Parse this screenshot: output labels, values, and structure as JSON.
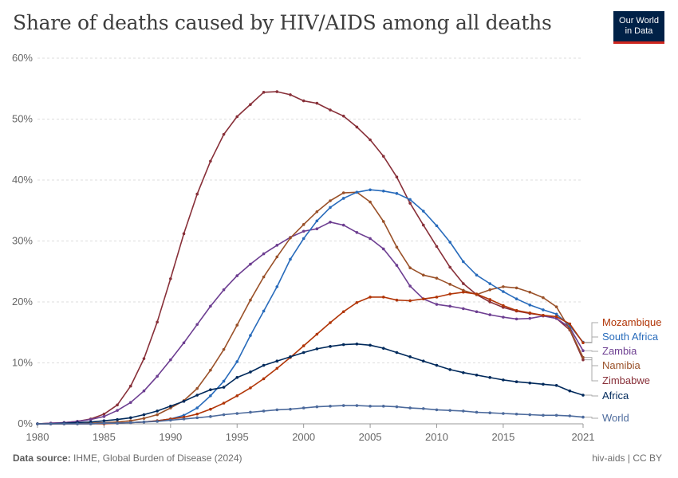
{
  "header": {
    "title": "Share of deaths caused by HIV/AIDS among all deaths",
    "logo_line1": "Our World",
    "logo_line2": "in Data"
  },
  "footer": {
    "source_label": "Data source:",
    "source_text": "IHME, Global Burden of Disease (2024)",
    "slug": "hiv-aids | CC BY"
  },
  "chart_data": {
    "type": "line",
    "title": "Share of deaths caused by HIV/AIDS among all deaths",
    "ylim": [
      0,
      60
    ],
    "y_ticks": [
      "0%",
      "10%",
      "20%",
      "30%",
      "40%",
      "50%",
      "60%"
    ],
    "x_ticks": [
      "1980",
      "1985",
      "1990",
      "1995",
      "2000",
      "2005",
      "2010",
      "2015",
      "2021"
    ],
    "grid": true,
    "legend": "right (labels at line ends)",
    "x": [
      1980,
      1981,
      1982,
      1983,
      1984,
      1985,
      1986,
      1987,
      1988,
      1989,
      1990,
      1991,
      1992,
      1993,
      1994,
      1995,
      1996,
      1997,
      1998,
      1999,
      2000,
      2001,
      2002,
      2003,
      2004,
      2005,
      2006,
      2007,
      2008,
      2009,
      2010,
      2011,
      2012,
      2013,
      2014,
      2015,
      2016,
      2017,
      2018,
      2019,
      2020,
      2021
    ],
    "series": [
      {
        "name": "Zimbabwe",
        "color": "#883039",
        "values": [
          0.0,
          0.1,
          0.2,
          0.4,
          0.8,
          1.6,
          3.1,
          6.2,
          10.7,
          16.7,
          23.8,
          31.2,
          37.7,
          43.1,
          47.5,
          50.4,
          52.4,
          54.4,
          54.5,
          54.0,
          53.0,
          52.6,
          51.5,
          50.5,
          48.7,
          46.6,
          43.9,
          40.5,
          36.2,
          32.6,
          29.1,
          25.7,
          23.0,
          21.2,
          20.0,
          19.1,
          18.5,
          18.1,
          17.8,
          17.3,
          15.4,
          10.5
        ]
      },
      {
        "name": "Zambia",
        "color": "#6d3e91",
        "values": [
          0.0,
          0.1,
          0.2,
          0.4,
          0.7,
          1.2,
          2.2,
          3.5,
          5.4,
          7.8,
          10.5,
          13.3,
          16.3,
          19.3,
          22.0,
          24.3,
          26.2,
          27.9,
          29.3,
          30.6,
          31.6,
          32.0,
          33.1,
          32.6,
          31.4,
          30.4,
          28.7,
          26.0,
          22.6,
          20.5,
          19.6,
          19.3,
          18.9,
          18.4,
          17.9,
          17.5,
          17.2,
          17.3,
          17.7,
          17.3,
          15.8,
          12.0
        ]
      },
      {
        "name": "Namibia",
        "color": "#9a5129",
        "values": [
          0.0,
          0.0,
          0.0,
          0.0,
          0.1,
          0.2,
          0.3,
          0.5,
          0.9,
          1.5,
          2.6,
          3.8,
          5.8,
          8.8,
          12.2,
          16.2,
          20.3,
          24.1,
          27.4,
          30.5,
          32.7,
          34.8,
          36.6,
          37.9,
          38.0,
          36.4,
          33.2,
          29.0,
          25.6,
          24.4,
          23.9,
          22.9,
          21.9,
          21.2,
          22.0,
          22.5,
          22.3,
          21.6,
          20.7,
          19.2,
          15.5,
          10.9
        ]
      },
      {
        "name": "South Africa",
        "color": "#286bbb",
        "values": [
          0.0,
          0.0,
          0.0,
          0.0,
          0.0,
          0.1,
          0.1,
          0.2,
          0.3,
          0.5,
          0.8,
          1.4,
          2.6,
          4.6,
          7.0,
          10.2,
          14.5,
          18.5,
          22.5,
          27.0,
          30.4,
          33.3,
          35.5,
          37.0,
          38.0,
          38.4,
          38.2,
          37.8,
          36.8,
          34.9,
          32.5,
          29.8,
          26.6,
          24.4,
          23.0,
          21.7,
          20.5,
          19.5,
          18.7,
          18.0,
          16.1,
          13.4
        ]
      },
      {
        "name": "Mozambique",
        "color": "#b13507",
        "values": [
          0.0,
          0.0,
          0.0,
          0.0,
          0.0,
          0.0,
          0.1,
          0.2,
          0.3,
          0.5,
          0.8,
          1.1,
          1.6,
          2.4,
          3.4,
          4.6,
          5.9,
          7.4,
          9.1,
          10.9,
          12.8,
          14.7,
          16.6,
          18.4,
          19.9,
          20.8,
          20.8,
          20.3,
          20.2,
          20.5,
          20.8,
          21.3,
          21.6,
          21.3,
          20.4,
          19.4,
          18.6,
          18.2,
          17.8,
          17.6,
          16.4,
          13.3
        ]
      },
      {
        "name": "Africa",
        "color": "#00295b",
        "values": [
          0.0,
          0.0,
          0.1,
          0.2,
          0.3,
          0.5,
          0.7,
          1.0,
          1.5,
          2.1,
          2.9,
          3.7,
          4.7,
          5.6,
          6.0,
          7.6,
          8.5,
          9.6,
          10.3,
          11.0,
          11.7,
          12.3,
          12.7,
          13.0,
          13.1,
          12.9,
          12.4,
          11.7,
          11.0,
          10.3,
          9.6,
          8.9,
          8.4,
          8.0,
          7.6,
          7.2,
          6.9,
          6.7,
          6.5,
          6.3,
          5.4,
          4.7
        ]
      },
      {
        "name": "World",
        "color": "#4c6a9c",
        "values": [
          0.0,
          0.0,
          0.0,
          0.0,
          0.0,
          0.1,
          0.1,
          0.2,
          0.3,
          0.4,
          0.6,
          0.8,
          1.0,
          1.2,
          1.5,
          1.7,
          1.9,
          2.1,
          2.3,
          2.4,
          2.6,
          2.8,
          2.9,
          3.0,
          3.0,
          2.9,
          2.9,
          2.8,
          2.6,
          2.5,
          2.3,
          2.2,
          2.1,
          1.9,
          1.8,
          1.7,
          1.6,
          1.5,
          1.4,
          1.4,
          1.3,
          1.1
        ]
      }
    ],
    "end_labels": [
      {
        "name": "Mozambique",
        "color": "#b13507"
      },
      {
        "name": "South Africa",
        "color": "#286bbb"
      },
      {
        "name": "Zambia",
        "color": "#6d3e91"
      },
      {
        "name": "Namibia",
        "color": "#9a5129"
      },
      {
        "name": "Zimbabwe",
        "color": "#883039"
      },
      {
        "name": "Africa",
        "color": "#00295b"
      },
      {
        "name": "World",
        "color": "#4c6a9c"
      }
    ]
  }
}
